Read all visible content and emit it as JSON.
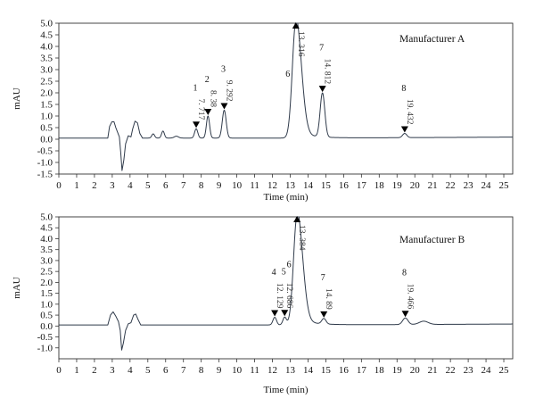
{
  "chart_data": [
    {
      "type": "line",
      "title": "Manufacturer A",
      "xlabel": "Time (min)",
      "ylabel": "mAU",
      "xlim": [
        0,
        25.5
      ],
      "ylim": [
        -1.5,
        5.0
      ],
      "xticks": [
        "0",
        "1",
        "2",
        "3",
        "4",
        "5",
        "6",
        "7",
        "8",
        "9",
        "10",
        "11",
        "12",
        "13",
        "14",
        "15",
        "16",
        "17",
        "18",
        "19",
        "20",
        "21",
        "22",
        "23",
        "24",
        "25"
      ],
      "yticks": [
        "-1.5",
        "-1.0",
        "-0.5",
        "0.0",
        "0.5",
        "1.0",
        "1.5",
        "2.0",
        "2.5",
        "3.0",
        "3.5",
        "4.0",
        "4.5",
        "5.0"
      ],
      "baseline": 0.05,
      "solvent_front": [
        {
          "t": 2.75,
          "y": 0.05
        },
        {
          "t": 2.85,
          "y": 0.55
        },
        {
          "t": 2.98,
          "y": 0.75
        },
        {
          "t": 3.1,
          "y": 0.75
        },
        {
          "t": 3.2,
          "y": 0.5
        },
        {
          "t": 3.3,
          "y": 0.3
        },
        {
          "t": 3.4,
          "y": 0.1
        },
        {
          "t": 3.48,
          "y": -0.6
        },
        {
          "t": 3.55,
          "y": -1.35
        },
        {
          "t": 3.65,
          "y": -0.9
        },
        {
          "t": 3.75,
          "y": -0.2
        },
        {
          "t": 3.9,
          "y": 0.15
        },
        {
          "t": 4.05,
          "y": 0.1
        },
        {
          "t": 4.15,
          "y": 0.45
        },
        {
          "t": 4.28,
          "y": 0.78
        },
        {
          "t": 4.42,
          "y": 0.7
        },
        {
          "t": 4.55,
          "y": 0.25
        },
        {
          "t": 4.7,
          "y": 0.05
        }
      ],
      "minor_peaks": [
        {
          "t": 5.3,
          "h": 0.18,
          "w": 0.08
        },
        {
          "t": 5.85,
          "h": 0.3,
          "w": 0.08
        },
        {
          "t": 6.6,
          "h": 0.08,
          "w": 0.12
        }
      ],
      "peaks": [
        {
          "number": "1",
          "rt": 7.717,
          "rt_label": "7. 717",
          "height": 0.4,
          "width": 0.09,
          "marker": true
        },
        {
          "number": "2",
          "rt": 8.38,
          "rt_label": "8. 38",
          "height": 0.95,
          "width": 0.09,
          "marker": true
        },
        {
          "number": "3",
          "rt": 9.292,
          "rt_label": "9. 292",
          "height": 1.2,
          "width": 0.11,
          "marker": true
        },
        {
          "number": "6",
          "rt": 13.316,
          "rt_label": "13. 316",
          "height": 5.0,
          "width": 0.22,
          "marker": true
        },
        {
          "number": "7",
          "rt": 14.812,
          "rt_label": "14. 812",
          "height": 1.9,
          "width": 0.13,
          "marker": true
        },
        {
          "number": "8",
          "rt": 19.432,
          "rt_label": "19. 432",
          "height": 0.18,
          "width": 0.12,
          "marker": true
        }
      ]
    },
    {
      "type": "line",
      "title": "Manufacturer B",
      "xlabel": "Time (min)",
      "ylabel": "mAU",
      "xlim": [
        0,
        25.5
      ],
      "ylim": [
        -1.5,
        5.0
      ],
      "xticks": [
        "0",
        "1",
        "2",
        "3",
        "4",
        "5",
        "6",
        "7",
        "8",
        "9",
        "10",
        "11",
        "12",
        "13",
        "14",
        "15",
        "16",
        "17",
        "18",
        "19",
        "20",
        "21",
        "22",
        "23",
        "24",
        "25"
      ],
      "yticks": [
        "-1.0",
        "-0.5",
        "0.0",
        "0.5",
        "1.0",
        "1.5",
        "2.0",
        "2.5",
        "3.0",
        "3.5",
        "4.0",
        "4.5",
        "5.0"
      ],
      "baseline": 0.05,
      "solvent_front": [
        {
          "t": 2.75,
          "y": 0.05
        },
        {
          "t": 2.9,
          "y": 0.5
        },
        {
          "t": 3.05,
          "y": 0.65
        },
        {
          "t": 3.2,
          "y": 0.45
        },
        {
          "t": 3.35,
          "y": 0.2
        },
        {
          "t": 3.45,
          "y": -0.2
        },
        {
          "t": 3.53,
          "y": -1.1
        },
        {
          "t": 3.62,
          "y": -0.8
        },
        {
          "t": 3.75,
          "y": -0.2
        },
        {
          "t": 3.9,
          "y": 0.1
        },
        {
          "t": 4.05,
          "y": 0.15
        },
        {
          "t": 4.2,
          "y": 0.5
        },
        {
          "t": 4.32,
          "y": 0.55
        },
        {
          "t": 4.45,
          "y": 0.3
        },
        {
          "t": 4.6,
          "y": 0.05
        }
      ],
      "minor_peaks": [
        {
          "t": 20.5,
          "h": 0.15,
          "w": 0.25
        }
      ],
      "peaks": [
        {
          "number": "4",
          "rt": 12.129,
          "rt_label": "12. 129",
          "height": 0.35,
          "width": 0.1,
          "marker": true
        },
        {
          "number": "5",
          "rt": 12.686,
          "rt_label": "12. 686",
          "height": 0.35,
          "width": 0.1,
          "marker": true
        },
        {
          "number": "6",
          "rt": 13.384,
          "rt_label": "13. 384",
          "height": 5.0,
          "width": 0.22,
          "marker": true
        },
        {
          "number": "7",
          "rt": 14.89,
          "rt_label": "14. 89",
          "height": 0.25,
          "width": 0.12,
          "marker": true
        },
        {
          "number": "8",
          "rt": 19.466,
          "rt_label": "19. 466",
          "height": 0.3,
          "width": 0.15,
          "marker": true
        }
      ]
    }
  ]
}
